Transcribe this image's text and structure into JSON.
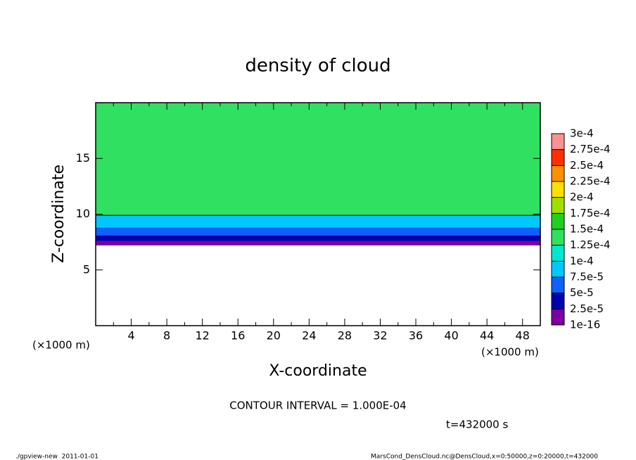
{
  "chart_data": {
    "type": "heatmap",
    "title": "density of cloud",
    "x_label": "X-coordinate",
    "y_label": "Z-coordinate",
    "x_unit": "(×1000 m)",
    "xlim": [
      0,
      50
    ],
    "ylim": [
      0,
      20
    ],
    "xticks": [
      4,
      8,
      12,
      16,
      20,
      24,
      28,
      32,
      36,
      40,
      44,
      48
    ],
    "xminorticks": [
      2,
      6,
      10,
      14,
      18,
      22,
      26,
      30,
      34,
      38,
      42,
      46,
      50
    ],
    "yticks": [
      5,
      10,
      15
    ],
    "z_edges": [
      7.2,
      7.6,
      8.1,
      8.8,
      9.9,
      20
    ],
    "values": [
      1e-05,
      3.5e-05,
      6e-05,
      9e-05,
      0.00014
    ],
    "contour_level": 0.0001,
    "levels": [
      {
        "value": 1e-16,
        "label": "1e-16"
      },
      {
        "value": 2.5e-05,
        "label": "2.5e-5"
      },
      {
        "value": 5e-05,
        "label": "5e-5"
      },
      {
        "value": 7.5e-05,
        "label": "7.5e-5"
      },
      {
        "value": 0.0001,
        "label": "1e-4"
      },
      {
        "value": 0.000125,
        "label": "1.25e-4"
      },
      {
        "value": 0.00015,
        "label": "1.5e-4"
      },
      {
        "value": 0.000175,
        "label": "1.75e-4"
      },
      {
        "value": 0.0002,
        "label": "2e-4"
      },
      {
        "value": 0.000225,
        "label": "2.25e-4"
      },
      {
        "value": 0.00025,
        "label": "2.5e-4"
      },
      {
        "value": 0.000275,
        "label": "2.75e-4"
      },
      {
        "value": 0.0003,
        "label": "3e-4"
      }
    ],
    "colors": [
      "#7a00a0",
      "#0000b0",
      "#1060ff",
      "#00c8ff",
      "#00e8d0",
      "#30e060",
      "#20d020",
      "#a0e000",
      "#ffe000",
      "#ff9000",
      "#ff3000",
      "#ff9090"
    ],
    "contour_note": "CONTOUR INTERVAL = 1.000E-04",
    "time_note": "t=432000 s",
    "footer_left": "./gpview-new  2011-01-01",
    "footer_right": "MarsCond_DensCloud.nc@DensCloud,x=0:50000,z=0:20000,t=432000"
  }
}
